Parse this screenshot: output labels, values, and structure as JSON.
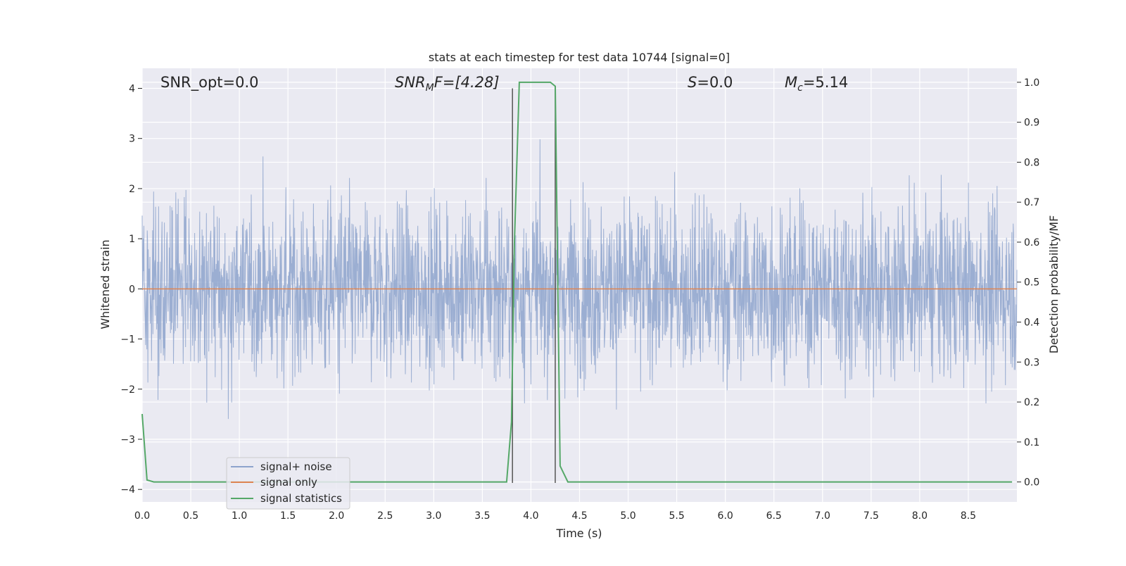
{
  "chart_data": {
    "type": "line",
    "title": "stats at each timestep for test data 10744 [signal=0]",
    "xlabel": "Time (s)",
    "ylabel": "Whitened strain",
    "y2label": "Detection probability/MF",
    "xlim": [
      0.0,
      9.0
    ],
    "ylim": [
      -4.25,
      4.4
    ],
    "y2lim": [
      -0.05,
      1.035
    ],
    "x_ticks": [
      0.0,
      0.5,
      1.0,
      1.5,
      2.0,
      2.5,
      3.0,
      3.5,
      4.0,
      4.5,
      5.0,
      5.5,
      6.0,
      6.5,
      7.0,
      7.5,
      8.0,
      8.5
    ],
    "x_tick_labels": [
      "0.0",
      "0.5",
      "1.0",
      "1.5",
      "2.0",
      "2.5",
      "3.0",
      "3.5",
      "4.0",
      "4.5",
      "5.0",
      "5.5",
      "6.0",
      "6.5",
      "7.0",
      "7.5",
      "8.0",
      "8.5"
    ],
    "y_ticks": [
      4,
      3,
      2,
      1,
      0,
      -1,
      -2,
      -3,
      -4
    ],
    "y_tick_labels": [
      "4",
      "3",
      "2",
      "1",
      "0",
      "−1",
      "−2",
      "−3",
      "−4"
    ],
    "y2_ticks": [
      1.0,
      0.9,
      0.8,
      0.7,
      0.6,
      0.5,
      0.4,
      0.3,
      0.2,
      0.1,
      0.0
    ],
    "y2_tick_labels": [
      "1.0",
      "0.9",
      "0.8",
      "0.7",
      "0.6",
      "0.5",
      "0.4",
      "0.3",
      "0.2",
      "0.1",
      "0.0"
    ],
    "grid": true,
    "legend_position": "lower-left",
    "annotations": {
      "snr_opt": "SNR_opt=0.0",
      "snr_mf_main": "SNR",
      "snr_mf_sub": "M",
      "snr_mf_rest": "F=[4.28]",
      "s_main": "S",
      "s_rest": "=0.0",
      "mc_main": "M",
      "mc_sub": "c",
      "mc_rest": "=5.14"
    },
    "series": [
      {
        "name": "signal+ noise",
        "color": "#8da3cd",
        "note_values": "whitened strain noise, approx. Gaussian, values mostly within [-3.5, 4.0]",
        "x_range": [
          0.0,
          9.0
        ],
        "amplitude_envelope": [
          -3.5,
          4.0
        ]
      },
      {
        "name": "signal only",
        "color": "#dd8452",
        "x": [
          0.0,
          9.0
        ],
        "y": [
          0.0,
          0.0
        ]
      },
      {
        "name": "signal statistics",
        "color": "#55a868",
        "axis": "right",
        "x": [
          0.0,
          0.05,
          0.12,
          0.5,
          1.0,
          2.0,
          3.0,
          3.5,
          3.75,
          3.8,
          3.83,
          3.88,
          4.0,
          4.1,
          4.2,
          4.25,
          4.3,
          4.38,
          4.5,
          5.0,
          6.0,
          7.0,
          8.0,
          8.95
        ],
        "y": [
          0.17,
          0.005,
          0.0,
          0.0,
          0.0,
          0.0,
          0.0,
          0.0,
          0.0,
          0.15,
          0.6,
          1.0,
          1.0,
          1.0,
          1.0,
          0.99,
          0.04,
          0.0,
          0.0,
          0.0,
          0.0,
          0.0,
          0.0,
          0.0
        ]
      }
    ],
    "vertical_markers": [
      3.81,
      4.25
    ],
    "vertical_marker_color": "#555555"
  }
}
